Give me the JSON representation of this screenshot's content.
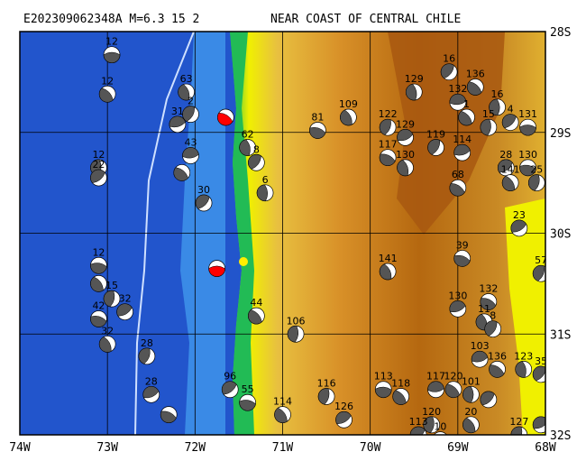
{
  "title": "E202309062348A M=6.3",
  "title_region": "NEAR COAST OF CENTRAL CHILE",
  "title_overlap_fragment": "15 2",
  "longitude_labels": [
    "74W",
    "73W",
    "72W",
    "71W",
    "70W",
    "69W",
    "68W"
  ],
  "latitude_labels": [
    "28S",
    "29S",
    "30S",
    "31S",
    "32S"
  ],
  "extent": {
    "lon_min": -74,
    "lon_max": -68,
    "lat_min": -32,
    "lat_max": -28
  },
  "colors": {
    "ocean_deep": "#2255cc",
    "ocean_shelf": "#3a8ae6",
    "trench_line": "#cfe0ff",
    "coastal_green": "#22bb55",
    "lowland_yellow": "#f0f000",
    "mid_orange": "#e0a030",
    "high_brown": "#b06010",
    "grid_line": "#000000",
    "beachball_dark": "#555555",
    "main_event": "#ff0000",
    "epicenter_marker": "#ffee00"
  },
  "events": [
    {
      "lon": -72.95,
      "lat": -28.23,
      "depth": "12"
    },
    {
      "lon": -73.0,
      "lat": -28.62,
      "depth": "12"
    },
    {
      "lon": -73.1,
      "lat": -29.35,
      "depth": "12"
    },
    {
      "lon": -73.1,
      "lat": -29.45,
      "depth": "22"
    },
    {
      "lon": -73.1,
      "lat": -30.32,
      "depth": "12"
    },
    {
      "lon": -73.1,
      "lat": -30.5,
      "depth": ""
    },
    {
      "lon": -72.95,
      "lat": -30.65,
      "depth": "15"
    },
    {
      "lon": -72.8,
      "lat": -30.78,
      "depth": "32"
    },
    {
      "lon": -73.1,
      "lat": -30.85,
      "depth": "42"
    },
    {
      "lon": -73.0,
      "lat": -31.1,
      "depth": "32"
    },
    {
      "lon": -72.55,
      "lat": -31.22,
      "depth": "28"
    },
    {
      "lon": -72.5,
      "lat": -31.6,
      "depth": "28"
    },
    {
      "lon": -72.3,
      "lat": -31.8,
      "depth": ""
    },
    {
      "lon": -72.1,
      "lat": -28.6,
      "depth": "63"
    },
    {
      "lon": -72.05,
      "lat": -28.82,
      "depth": "2"
    },
    {
      "lon": -72.2,
      "lat": -28.92,
      "depth": "31"
    },
    {
      "lon": -71.65,
      "lat": -28.85,
      "depth": "",
      "main": true
    },
    {
      "lon": -71.4,
      "lat": -29.15,
      "depth": "62"
    },
    {
      "lon": -71.3,
      "lat": -29.3,
      "depth": "8"
    },
    {
      "lon": -72.05,
      "lat": -29.23,
      "depth": "43"
    },
    {
      "lon": -72.15,
      "lat": -29.4,
      "depth": ""
    },
    {
      "lon": -71.2,
      "lat": -29.6,
      "depth": "6"
    },
    {
      "lon": -71.9,
      "lat": -29.7,
      "depth": "30"
    },
    {
      "lon": -71.75,
      "lat": -30.35,
      "depth": "",
      "main": true
    },
    {
      "lon": -71.3,
      "lat": -30.82,
      "depth": "44"
    },
    {
      "lon": -70.85,
      "lat": -31.0,
      "depth": "106"
    },
    {
      "lon": -71.6,
      "lat": -31.55,
      "depth": "96"
    },
    {
      "lon": -71.4,
      "lat": -31.68,
      "depth": "55"
    },
    {
      "lon": -71.0,
      "lat": -31.8,
      "depth": "114"
    },
    {
      "lon": -70.5,
      "lat": -31.62,
      "depth": "116"
    },
    {
      "lon": -70.3,
      "lat": -31.85,
      "depth": "126"
    },
    {
      "lon": -70.6,
      "lat": -28.98,
      "depth": "81"
    },
    {
      "lon": -70.25,
      "lat": -28.85,
      "depth": "109"
    },
    {
      "lon": -69.8,
      "lat": -28.95,
      "depth": "122"
    },
    {
      "lon": -69.6,
      "lat": -29.05,
      "depth": "129"
    },
    {
      "lon": -69.8,
      "lat": -29.25,
      "depth": "117"
    },
    {
      "lon": -69.6,
      "lat": -29.35,
      "depth": "130"
    },
    {
      "lon": -69.25,
      "lat": -29.15,
      "depth": "119"
    },
    {
      "lon": -68.95,
      "lat": -29.2,
      "depth": "114"
    },
    {
      "lon": -69.0,
      "lat": -29.55,
      "depth": "68"
    },
    {
      "lon": -69.5,
      "lat": -28.6,
      "depth": "129"
    },
    {
      "lon": -69.1,
      "lat": -28.4,
      "depth": "16"
    },
    {
      "lon": -69.0,
      "lat": -28.7,
      "depth": "132"
    },
    {
      "lon": -68.8,
      "lat": -28.55,
      "depth": "136"
    },
    {
      "lon": -68.55,
      "lat": -28.75,
      "depth": "16"
    },
    {
      "lon": -68.4,
      "lat": -28.9,
      "depth": "4"
    },
    {
      "lon": -68.2,
      "lat": -28.95,
      "depth": "131"
    },
    {
      "lon": -68.9,
      "lat": -28.85,
      "depth": "1"
    },
    {
      "lon": -68.65,
      "lat": -28.95,
      "depth": "15"
    },
    {
      "lon": -68.45,
      "lat": -29.35,
      "depth": "28"
    },
    {
      "lon": -68.2,
      "lat": -29.35,
      "depth": "130"
    },
    {
      "lon": -68.4,
      "lat": -29.5,
      "depth": "141"
    },
    {
      "lon": -68.1,
      "lat": -29.5,
      "depth": "25"
    },
    {
      "lon": -68.3,
      "lat": -29.95,
      "depth": "23"
    },
    {
      "lon": -68.95,
      "lat": -30.25,
      "depth": "39"
    },
    {
      "lon": -69.8,
      "lat": -30.38,
      "depth": "141"
    },
    {
      "lon": -68.05,
      "lat": -30.4,
      "depth": "57"
    },
    {
      "lon": -69.0,
      "lat": -30.75,
      "depth": "130"
    },
    {
      "lon": -68.65,
      "lat": -30.68,
      "depth": "132"
    },
    {
      "lon": -68.7,
      "lat": -30.88,
      "depth": "11"
    },
    {
      "lon": -68.6,
      "lat": -30.95,
      "depth": "8"
    },
    {
      "lon": -68.75,
      "lat": -31.25,
      "depth": "103"
    },
    {
      "lon": -68.55,
      "lat": -31.35,
      "depth": "136"
    },
    {
      "lon": -68.25,
      "lat": -31.35,
      "depth": "123"
    },
    {
      "lon": -68.05,
      "lat": -31.4,
      "depth": "35"
    },
    {
      "lon": -69.25,
      "lat": -31.55,
      "depth": "117"
    },
    {
      "lon": -69.05,
      "lat": -31.55,
      "depth": "120"
    },
    {
      "lon": -68.85,
      "lat": -31.6,
      "depth": "101"
    },
    {
      "lon": -68.65,
      "lat": -31.65,
      "depth": ""
    },
    {
      "lon": -69.85,
      "lat": -31.55,
      "depth": "113"
    },
    {
      "lon": -69.65,
      "lat": -31.62,
      "depth": "118"
    },
    {
      "lon": -69.3,
      "lat": -31.9,
      "depth": "120"
    },
    {
      "lon": -69.45,
      "lat": -32.0,
      "depth": "113"
    },
    {
      "lon": -69.2,
      "lat": -32.05,
      "depth": "10"
    },
    {
      "lon": -68.85,
      "lat": -31.9,
      "depth": "20"
    },
    {
      "lon": -68.3,
      "lat": -32.0,
      "depth": "127"
    },
    {
      "lon": -68.05,
      "lat": -31.9,
      "depth": ""
    }
  ]
}
